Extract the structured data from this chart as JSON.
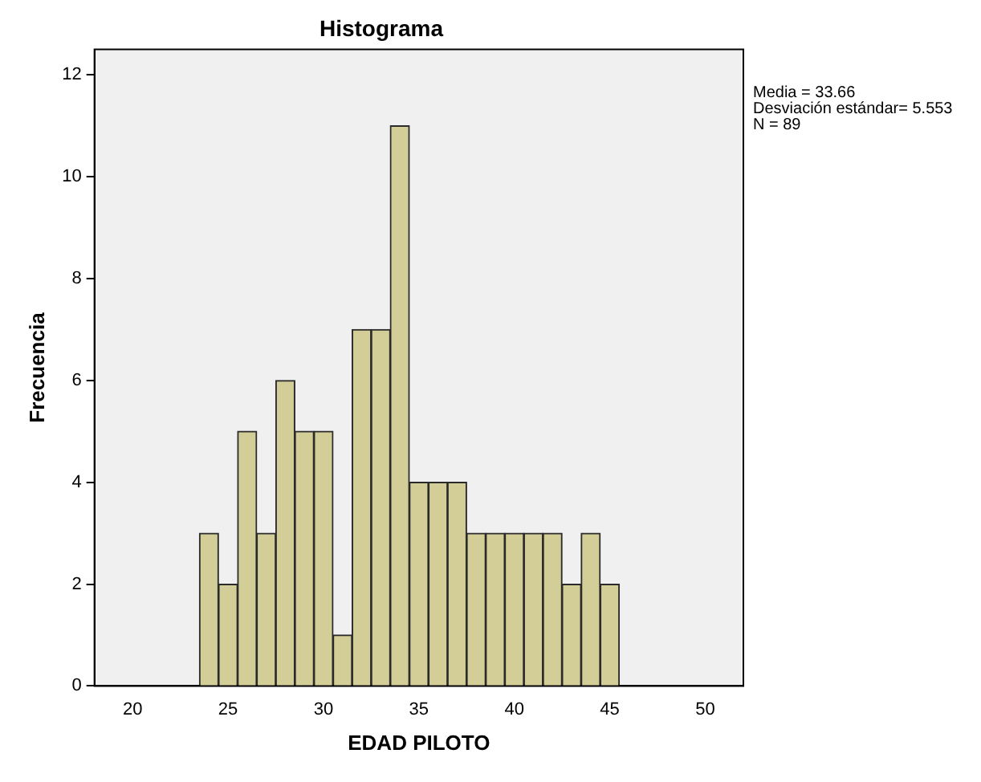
{
  "chart_data": {
    "type": "histogram",
    "title": "Histograma",
    "xlabel": "EDAD PILOTO",
    "ylabel": "Frecuencia",
    "bins": [
      23.5,
      24.5,
      25.5,
      26.5,
      27.5,
      28.5,
      29.5,
      30.5,
      31.5,
      32.5,
      33.5,
      34.5,
      35.5,
      36.5,
      37.5,
      38.5,
      39.5,
      40.5,
      41.5,
      42.5,
      43.5,
      44.5,
      45.5
    ],
    "values": [
      3,
      2,
      5,
      3,
      6,
      5,
      5,
      1,
      7,
      7,
      11,
      4,
      4,
      4,
      3,
      3,
      3,
      3,
      3,
      2,
      3,
      2
    ],
    "color": "#d3ce97",
    "xlim": [
      18,
      52
    ],
    "xticks": [
      20,
      25,
      30,
      35,
      40,
      45,
      50
    ],
    "ylim": [
      0,
      12.5
    ],
    "yticks": [
      0,
      2,
      4,
      6,
      8,
      10,
      12
    ],
    "annotations": [
      "Media = 33.66",
      "Desviación estándar= 5.553",
      "N = 89"
    ]
  }
}
